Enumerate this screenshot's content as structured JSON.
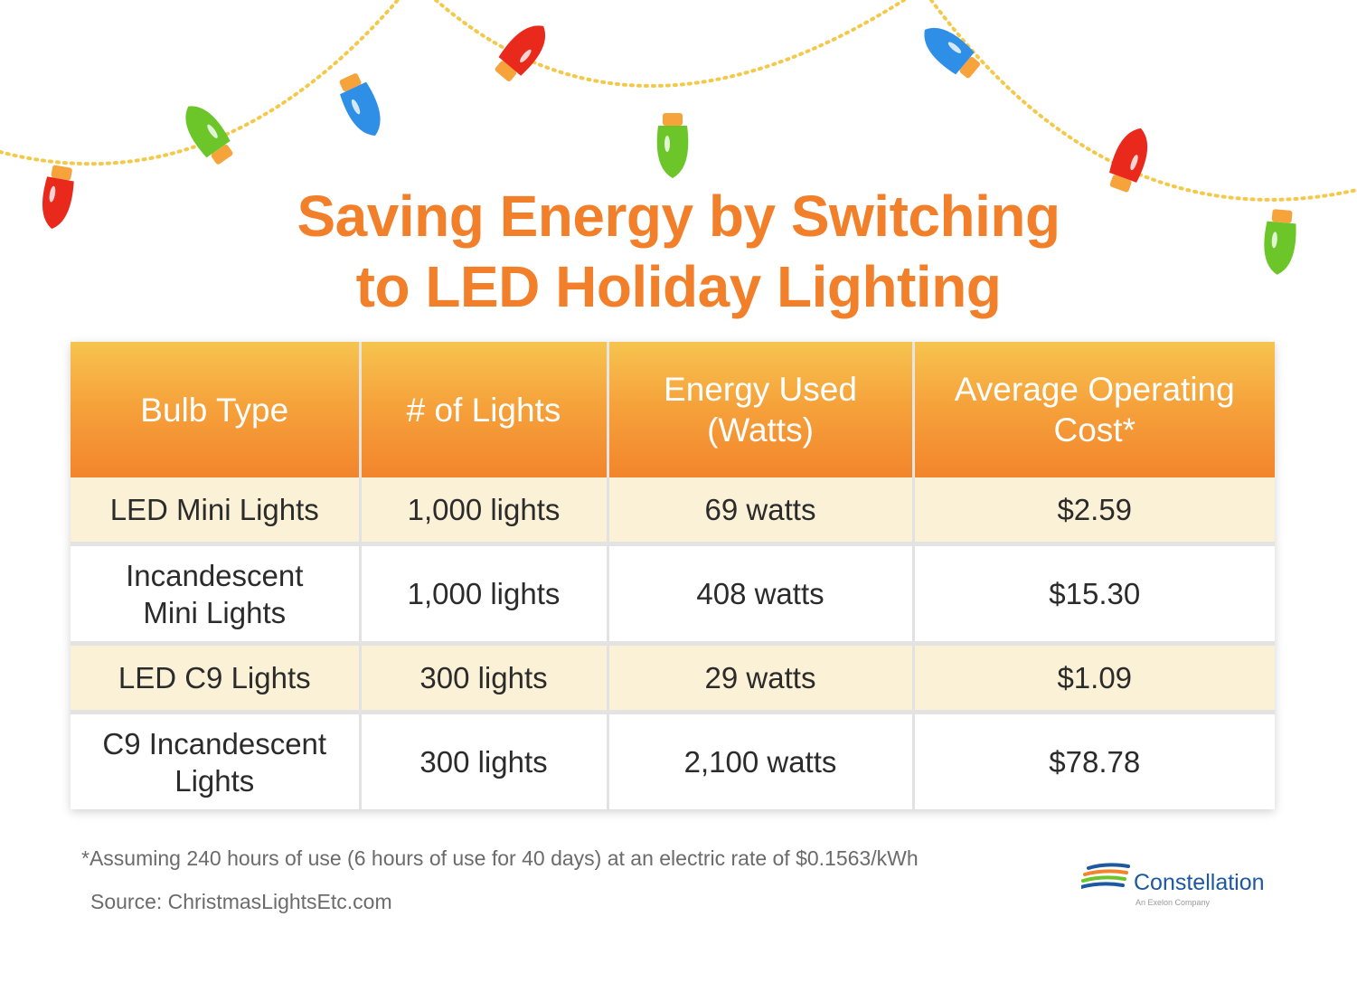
{
  "title": {
    "line1": "Saving Energy by Switching",
    "line2": "to LED Holiday Lighting"
  },
  "table": {
    "headers": [
      "Bulb Type",
      "# of Lights",
      "Energy Used (Watts)",
      "Average Operating Cost*"
    ],
    "rows": [
      [
        "LED Mini Lights",
        "1,000 lights",
        "69 watts",
        "$2.59"
      ],
      [
        "Incandescent Mini Lights",
        "1,000 lights",
        "408 watts",
        "$15.30"
      ],
      [
        "LED C9 Lights",
        "300 lights",
        "29 watts",
        "$1.09"
      ],
      [
        "C9 Incandescent Lights",
        "300 lights",
        "2,100 watts",
        "$78.78"
      ]
    ]
  },
  "footnote": "*Assuming 240 hours of use (6 hours of use for 40 days) at an electric rate of $0.1563/kWh",
  "source": "Source: ChristmasLightsEtc.com",
  "logo": {
    "name": "Constellation",
    "tagline": "An Exelon Company"
  },
  "colors": {
    "title": "#f27f2a",
    "header_top": "#f6c44f",
    "header_bottom": "#f2852c",
    "row_highlight": "#fbf1d6",
    "logo_blue": "#1d58a0",
    "bulb_red": "#e8291c",
    "bulb_green": "#6cc62a",
    "bulb_blue": "#2f8ee6",
    "bulb_cap": "#f6a33c",
    "wire": "#f4c94a"
  },
  "decorations": {
    "icon": "christmas-light-string-icon"
  }
}
